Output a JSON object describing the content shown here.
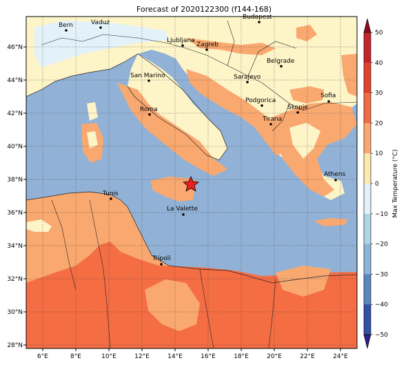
{
  "title": "Forecast of 2020122300 (f144-168)",
  "lon_ticks": [
    "6°E",
    "8°E",
    "10°E",
    "12°E",
    "14°E",
    "16°E",
    "18°E",
    "20°E",
    "22°E",
    "24°E"
  ],
  "lat_ticks": [
    "46°N",
    "44°N",
    "42°N",
    "40°N",
    "38°N",
    "36°N",
    "34°N",
    "32°N",
    "30°N",
    "28°N"
  ],
  "colorbar": {
    "label": "Max Temperature (°C)",
    "ticks": [
      "50",
      "40",
      "30",
      "20",
      "10",
      "0",
      "−10",
      "−20",
      "−30",
      "−40",
      "−50"
    ],
    "colors": [
      "#8b0a1f",
      "#c2262c",
      "#e0422e",
      "#f36b45",
      "#f9a873",
      "#fde9b0",
      "#e2f2f8",
      "#b0d4e8",
      "#8eb4d8",
      "#5b87bf",
      "#3452a5",
      "#2b1f8a"
    ]
  },
  "colors": {
    "sea": "#91b2d6",
    "land_cool": "#fdf4c8",
    "land_mild": "#f9a870",
    "land_warm": "#f46d43",
    "land_cold": "#e3f2f9"
  },
  "cities": [
    {
      "name": "Bern"
    },
    {
      "name": "Vaduz"
    },
    {
      "name": "Budapest"
    },
    {
      "name": "Ljubljana"
    },
    {
      "name": "Zagreb"
    },
    {
      "name": "Belgrade"
    },
    {
      "name": "San Marino"
    },
    {
      "name": "Sarajevo"
    },
    {
      "name": "Sofia"
    },
    {
      "name": "Podgorica"
    },
    {
      "name": "Skopje"
    },
    {
      "name": "Roma"
    },
    {
      "name": "Tirana"
    },
    {
      "name": "Athens"
    },
    {
      "name": "Tunis"
    },
    {
      "name": "La Valette"
    },
    {
      "name": "Tripoli"
    }
  ],
  "marker": "star"
}
